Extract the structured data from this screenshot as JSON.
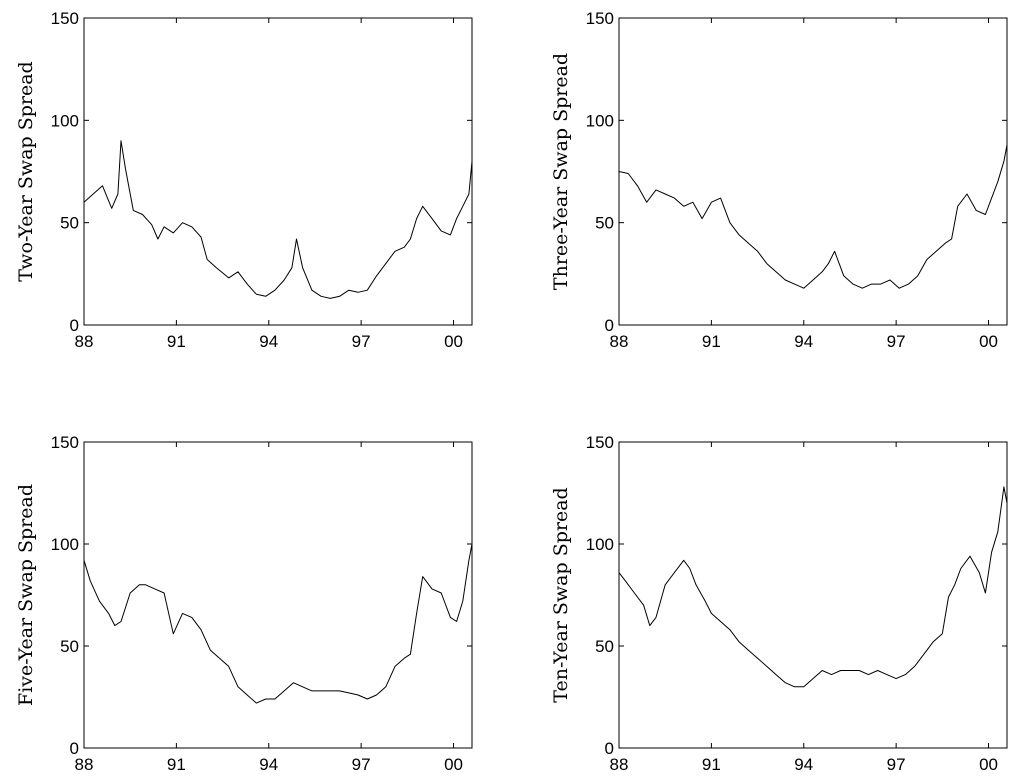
{
  "chart_data": [
    {
      "type": "line",
      "title": "",
      "xlabel": "",
      "ylabel": "Two-Year Swap Spread",
      "xlim": [
        1988.0,
        2000.6
      ],
      "ylim": [
        0,
        150
      ],
      "xticks": [
        1988,
        1991,
        1994,
        1997,
        2000
      ],
      "xtick_labels": [
        "88",
        "91",
        "94",
        "97",
        "00"
      ],
      "yticks": [
        0,
        50,
        100,
        150
      ],
      "ytick_labels": [
        "0",
        "50",
        "100",
        "150"
      ],
      "grid": false,
      "series": [
        {
          "x": [
            1988.0,
            1988.3,
            1988.6,
            1988.9,
            1989.1,
            1989.2,
            1989.35,
            1989.6,
            1989.9,
            1990.2,
            1990.4,
            1990.6,
            1990.9,
            1991.2,
            1991.5,
            1991.8,
            1992.0,
            1992.3,
            1992.7,
            1993.0,
            1993.3,
            1993.6,
            1993.9,
            1994.2,
            1994.5,
            1994.75,
            1994.9,
            1995.1,
            1995.4,
            1995.7,
            1996.0,
            1996.3,
            1996.6,
            1996.9,
            1997.2,
            1997.5,
            1997.8,
            1998.1,
            1998.4,
            1998.6,
            1998.8,
            1999.0,
            1999.3,
            1999.6,
            1999.9,
            2000.1,
            2000.3,
            2000.5,
            2000.6
          ],
          "y": [
            60,
            64,
            68,
            57,
            64,
            90,
            76,
            56,
            54,
            49,
            42,
            48,
            45,
            50,
            48,
            43,
            32,
            28,
            23,
            26,
            20,
            15,
            14,
            17,
            22,
            28,
            42,
            28,
            17,
            14,
            13,
            14,
            17,
            16,
            17,
            24,
            30,
            36,
            38,
            42,
            52,
            58,
            52,
            46,
            44,
            52,
            58,
            64,
            80
          ]
        }
      ]
    },
    {
      "type": "line",
      "title": "",
      "xlabel": "",
      "ylabel": "Three-Year Swap Spread",
      "xlim": [
        1988.0,
        2000.6
      ],
      "ylim": [
        0,
        150
      ],
      "xticks": [
        1988,
        1991,
        1994,
        1997,
        2000
      ],
      "xtick_labels": [
        "88",
        "91",
        "94",
        "97",
        "00"
      ],
      "yticks": [
        0,
        50,
        100,
        150
      ],
      "ytick_labels": [
        "0",
        "50",
        "100",
        "150"
      ],
      "grid": false,
      "series": [
        {
          "x": [
            1988.0,
            1988.3,
            1988.6,
            1988.9,
            1989.2,
            1989.5,
            1989.8,
            1990.1,
            1990.4,
            1990.7,
            1991.0,
            1991.3,
            1991.6,
            1991.9,
            1992.2,
            1992.5,
            1992.8,
            1993.1,
            1993.4,
            1993.7,
            1994.0,
            1994.3,
            1994.6,
            1994.8,
            1995.0,
            1995.3,
            1995.6,
            1995.9,
            1996.2,
            1996.5,
            1996.8,
            1997.1,
            1997.4,
            1997.7,
            1998.0,
            1998.3,
            1998.6,
            1998.8,
            1999.0,
            1999.3,
            1999.6,
            1999.9,
            2000.1,
            2000.3,
            2000.5,
            2000.6
          ],
          "y": [
            75,
            74,
            68,
            60,
            66,
            64,
            62,
            58,
            60,
            52,
            60,
            62,
            50,
            44,
            40,
            36,
            30,
            26,
            22,
            20,
            18,
            22,
            26,
            30,
            36,
            24,
            20,
            18,
            20,
            20,
            22,
            18,
            20,
            24,
            32,
            36,
            40,
            42,
            58,
            64,
            56,
            54,
            62,
            70,
            80,
            88
          ]
        }
      ]
    },
    {
      "type": "line",
      "title": "",
      "xlabel": "",
      "ylabel": "Five-Year Swap Spread",
      "xlim": [
        1988.0,
        2000.6
      ],
      "ylim": [
        0,
        150
      ],
      "xticks": [
        1988,
        1991,
        1994,
        1997,
        2000
      ],
      "xtick_labels": [
        "88",
        "91",
        "94",
        "97",
        "00"
      ],
      "yticks": [
        0,
        50,
        100,
        150
      ],
      "ytick_labels": [
        "0",
        "50",
        "100",
        "150"
      ],
      "grid": false,
      "series": [
        {
          "x": [
            1988.0,
            1988.2,
            1988.5,
            1988.8,
            1989.0,
            1989.2,
            1989.5,
            1989.8,
            1990.0,
            1990.3,
            1990.6,
            1990.9,
            1991.2,
            1991.5,
            1991.8,
            1992.1,
            1992.4,
            1992.7,
            1993.0,
            1993.3,
            1993.6,
            1993.9,
            1994.2,
            1994.5,
            1994.8,
            1995.1,
            1995.4,
            1995.7,
            1996.0,
            1996.3,
            1996.6,
            1996.9,
            1997.2,
            1997.5,
            1997.8,
            1998.1,
            1998.4,
            1998.6,
            1998.8,
            1999.0,
            1999.3,
            1999.6,
            1999.9,
            2000.1,
            2000.3,
            2000.5,
            2000.6
          ],
          "y": [
            92,
            82,
            72,
            66,
            60,
            62,
            76,
            80,
            80,
            78,
            76,
            56,
            66,
            64,
            58,
            48,
            44,
            40,
            30,
            26,
            22,
            24,
            24,
            28,
            32,
            30,
            28,
            28,
            28,
            28,
            27,
            26,
            24,
            26,
            30,
            40,
            44,
            46,
            66,
            84,
            78,
            76,
            64,
            62,
            72,
            92,
            100
          ]
        }
      ]
    },
    {
      "type": "line",
      "title": "",
      "xlabel": "",
      "ylabel": "Ten-Year Swap Spread",
      "xlim": [
        1988.0,
        2000.6
      ],
      "ylim": [
        0,
        150
      ],
      "xticks": [
        1988,
        1991,
        1994,
        1997,
        2000
      ],
      "xtick_labels": [
        "88",
        "91",
        "94",
        "97",
        "00"
      ],
      "yticks": [
        0,
        50,
        100,
        150
      ],
      "ytick_labels": [
        "0",
        "50",
        "100",
        "150"
      ],
      "grid": false,
      "series": [
        {
          "x": [
            1988.0,
            1988.2,
            1988.5,
            1988.8,
            1989.0,
            1989.2,
            1989.5,
            1989.8,
            1990.1,
            1990.3,
            1990.5,
            1990.8,
            1991.0,
            1991.3,
            1991.6,
            1991.9,
            1992.2,
            1992.5,
            1992.8,
            1993.1,
            1993.4,
            1993.7,
            1994.0,
            1994.3,
            1994.6,
            1994.9,
            1995.2,
            1995.5,
            1995.8,
            1996.1,
            1996.4,
            1996.7,
            1997.0,
            1997.3,
            1997.6,
            1997.9,
            1998.2,
            1998.5,
            1998.7,
            1998.9,
            1999.1,
            1999.4,
            1999.7,
            1999.9,
            2000.1,
            2000.3,
            2000.5,
            2000.6
          ],
          "y": [
            86,
            82,
            76,
            70,
            60,
            64,
            80,
            86,
            92,
            88,
            80,
            72,
            66,
            62,
            58,
            52,
            48,
            44,
            40,
            36,
            32,
            30,
            30,
            34,
            38,
            36,
            38,
            38,
            38,
            36,
            38,
            36,
            34,
            36,
            40,
            46,
            52,
            56,
            74,
            80,
            88,
            94,
            86,
            76,
            96,
            106,
            128,
            120
          ]
        }
      ]
    }
  ]
}
